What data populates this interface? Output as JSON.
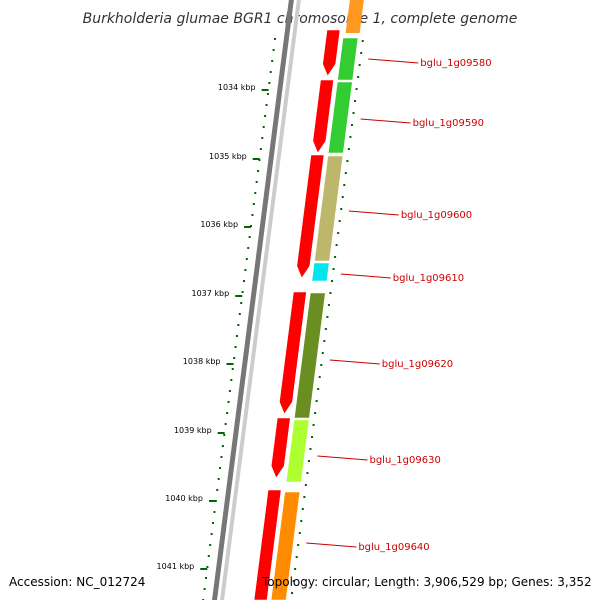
{
  "title": "Burkholderia glumae BGR1 chromosome 1, complete genome",
  "footer": {
    "accession": "Accession: NC_012724",
    "topology": "Topology: circular; Length: 3,906,529 bp; Genes: 3,352"
  },
  "colors": {
    "backbone": "#777777",
    "backbone_light": "#cccccc",
    "cds": "#ff0000",
    "tick": "#006600",
    "label": "#cc0000"
  },
  "scale_marks": [
    "1034 kbp",
    "1035 kbp",
    "1036 kbp",
    "1037 kbp",
    "1038 kbp",
    "1039 kbp",
    "1040 kbp",
    "1041 kbp"
  ],
  "genes": [
    {
      "label": "bglu_1g09580",
      "color": "#33cc33"
    },
    {
      "label": "bglu_1g09590",
      "color": "#33cc33"
    },
    {
      "label": "bglu_1g09600",
      "color": "#bdb76b"
    },
    {
      "label": "bglu_1g09610",
      "color": "#00e5ee"
    },
    {
      "label": "bglu_1g09620",
      "color": "#6b8e23"
    },
    {
      "label": "bglu_1g09630",
      "color": "#adff2f"
    },
    {
      "label": "bglu_1g09640",
      "color": "#ff8c00"
    }
  ]
}
